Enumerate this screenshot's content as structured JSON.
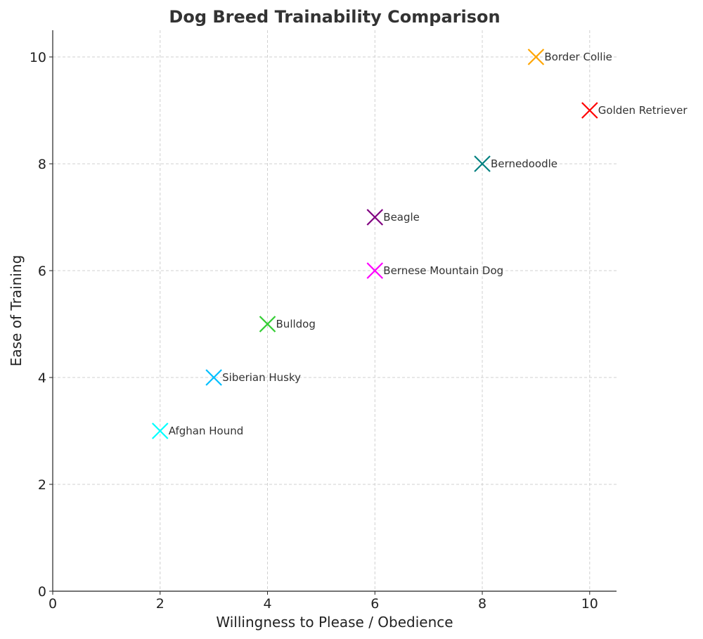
{
  "chart_data": {
    "type": "scatter",
    "title": "Dog Breed Trainability Comparison",
    "xlabel": "Willingness to Please / Obedience",
    "ylabel": "Ease of Training",
    "xlim": [
      0,
      10.5
    ],
    "ylim": [
      0,
      10.5
    ],
    "xticks": [
      "0",
      "2",
      "4",
      "6",
      "8",
      "10"
    ],
    "yticks": [
      "0",
      "2",
      "4",
      "6",
      "8",
      "10"
    ],
    "grid": true,
    "marker": "x",
    "points": [
      {
        "label": "Border Collie",
        "x": 9,
        "y": 10,
        "color": "#ffa500"
      },
      {
        "label": "Golden Retriever",
        "x": 10,
        "y": 9,
        "color": "#ff0000"
      },
      {
        "label": "Bernedoodle",
        "x": 8,
        "y": 8,
        "color": "#008080"
      },
      {
        "label": "Beagle",
        "x": 6,
        "y": 7,
        "color": "#800080"
      },
      {
        "label": "Bernese Mountain Dog",
        "x": 6,
        "y": 6,
        "color": "#ff00ff"
      },
      {
        "label": "Bulldog",
        "x": 4,
        "y": 5,
        "color": "#32cd32"
      },
      {
        "label": "Siberian Husky",
        "x": 3,
        "y": 4,
        "color": "#00bfff"
      },
      {
        "label": "Afghan Hound",
        "x": 2,
        "y": 3,
        "color": "#00ffff"
      }
    ]
  }
}
